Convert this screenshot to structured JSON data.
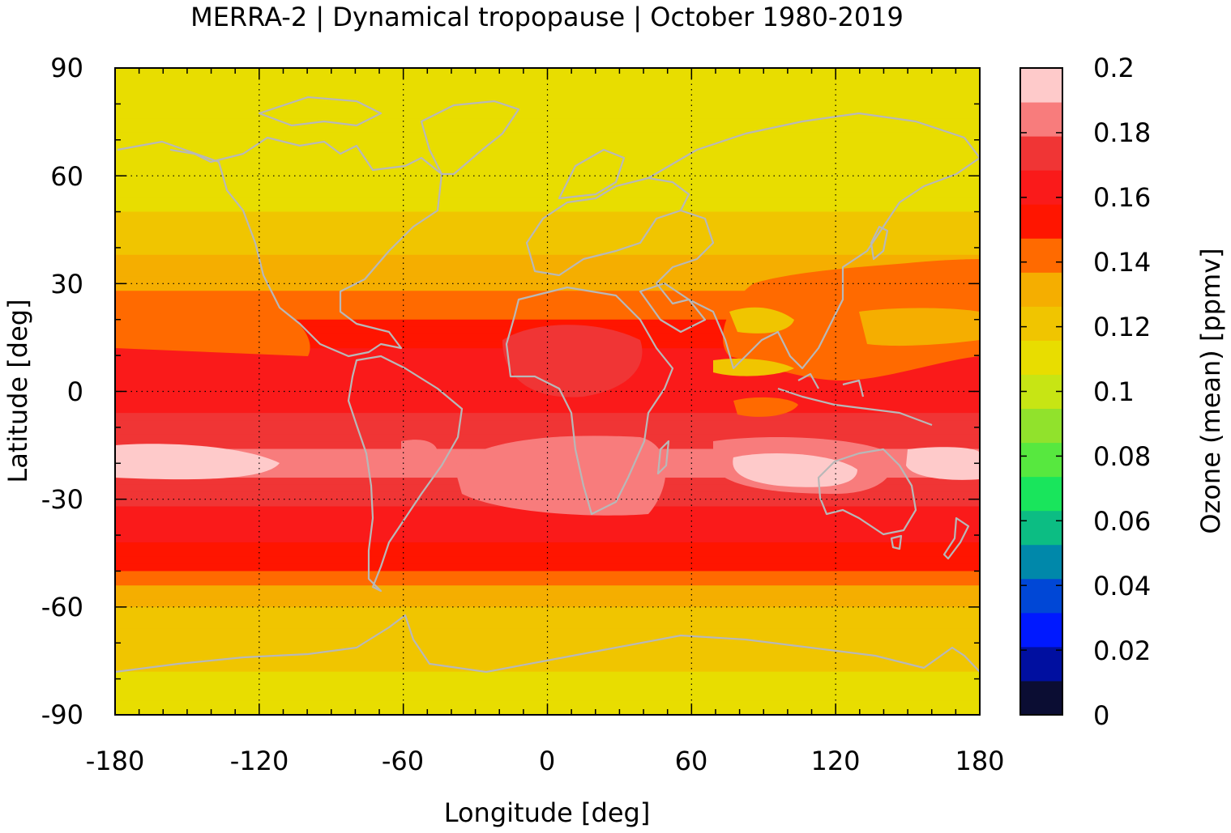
{
  "chart_data": {
    "type": "heatmap",
    "title": "MERRA-2 | Dynamical tropopause | October 1980-2019",
    "xlabel": "Longitude [deg]",
    "ylabel": "Latitude [deg]",
    "xlim": [
      -180,
      180
    ],
    "ylim": [
      -90,
      90
    ],
    "x_ticks": [
      "-180",
      "-120",
      "-60",
      "0",
      "60",
      "120",
      "180"
    ],
    "y_ticks": [
      "90",
      "60",
      "30",
      "0",
      "-30",
      "-60",
      "-90"
    ],
    "grid": true,
    "colorbar": {
      "label": "Ozone (mean) [ppmv]",
      "range": [
        0,
        0.2
      ],
      "tick_labels": [
        "0.2",
        "0.18",
        "0.16",
        "0.14",
        "0.12",
        "0.1",
        "0.08",
        "0.06",
        "0.04",
        "0.02",
        "0"
      ],
      "colors": [
        "#0b0d33",
        "#000fa0",
        "#0019ff",
        "#0047d6",
        "#0088aa",
        "#0cbd83",
        "#19e55c",
        "#57e83f",
        "#91e22c",
        "#c7e514",
        "#e8dd00",
        "#f0c500",
        "#f5ae00",
        "#ff6a00",
        "#ff1500",
        "#fa1a1a",
        "#f03535",
        "#f87c7c",
        "#fecaca"
      ]
    },
    "zonal_mean_profile": {
      "description_units": "ppmv by latitude (deg)",
      "lat": [
        90,
        80,
        70,
        60,
        50,
        40,
        30,
        20,
        10,
        0,
        -10,
        -20,
        -30,
        -40,
        -50,
        -60,
        -70,
        -80,
        -90
      ],
      "value": [
        0.105,
        0.108,
        0.11,
        0.112,
        0.115,
        0.125,
        0.135,
        0.148,
        0.16,
        0.166,
        0.17,
        0.185,
        0.172,
        0.16,
        0.148,
        0.125,
        0.12,
        0.115,
        0.11
      ]
    },
    "overlay": "coastlines"
  },
  "colors": {
    "coastline": "#b8b8b8",
    "grid": "#000000"
  }
}
